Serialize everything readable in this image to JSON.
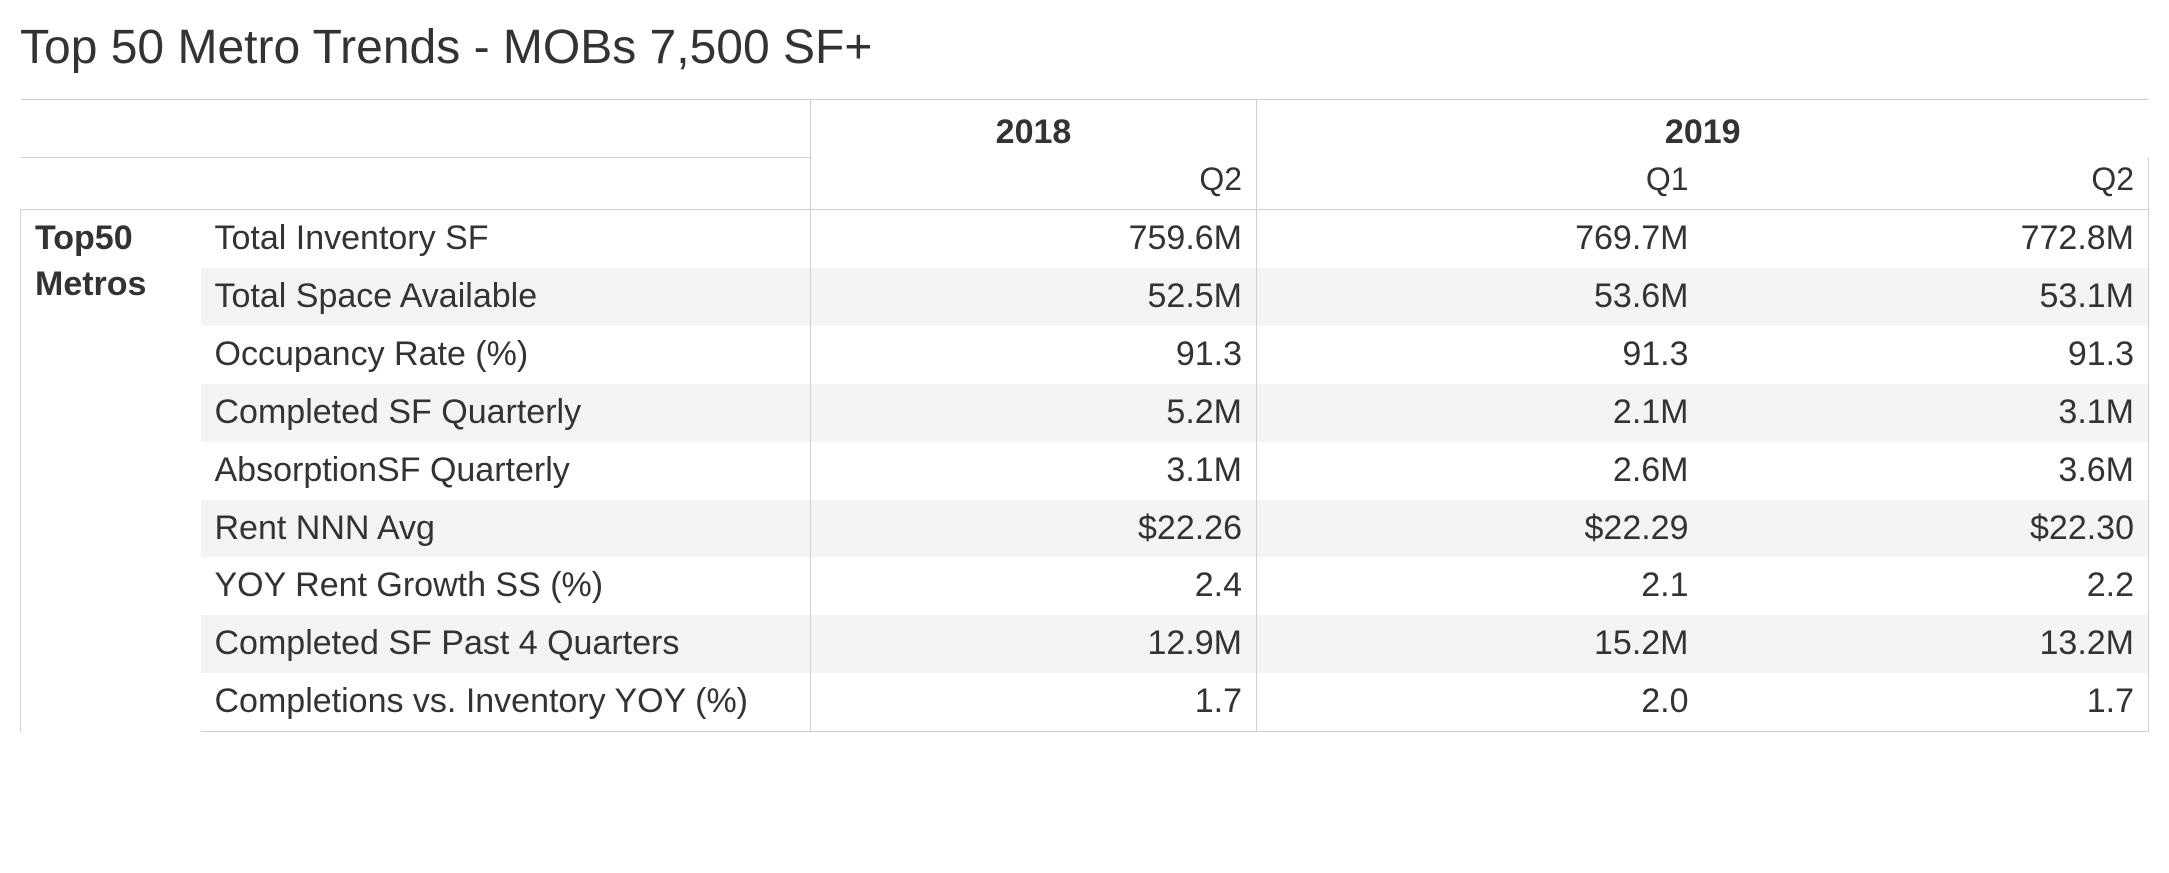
{
  "title": "Top 50 Metro Trends - MOBs 7,500 SF+",
  "category_label_line1": "Top50",
  "category_label_line2": "Metros",
  "columns": {
    "groups": [
      "2018",
      "2019"
    ],
    "group_spans": [
      1,
      2
    ],
    "quarters": [
      "Q2",
      "Q1",
      "Q2"
    ]
  },
  "rows": [
    {
      "metric": "Total Inventory SF",
      "values": [
        "759.6M",
        "769.7M",
        "772.8M"
      ]
    },
    {
      "metric": "Total Space Available",
      "values": [
        "52.5M",
        "53.6M",
        "53.1M"
      ]
    },
    {
      "metric": "Occupancy Rate (%)",
      "values": [
        "91.3",
        "91.3",
        "91.3"
      ]
    },
    {
      "metric": "Completed SF Quarterly",
      "values": [
        "5.2M",
        "2.1M",
        "3.1M"
      ]
    },
    {
      "metric": "AbsorptionSF Quarterly",
      "values": [
        "3.1M",
        "2.6M",
        "3.6M"
      ]
    },
    {
      "metric": "Rent NNN Avg",
      "values": [
        "$22.26",
        "$22.29",
        "$22.30"
      ]
    },
    {
      "metric": "YOY Rent Growth SS (%)",
      "values": [
        "2.4",
        "2.1",
        "2.2"
      ]
    },
    {
      "metric": "Completed SF Past 4 Quarters",
      "values": [
        "12.9M",
        "15.2M",
        "13.2M"
      ]
    },
    {
      "metric": "Completions vs. Inventory YOY (%)",
      "values": [
        "1.7",
        "2.0",
        "1.7"
      ]
    }
  ],
  "style": {
    "font_family": "Segoe UI",
    "title_fontsize": 48,
    "cell_fontsize": 34,
    "stripe_color": "#f4f4f4",
    "border_color": "#d0d0d0",
    "text_color": "#333333",
    "background_color": "#ffffff"
  }
}
